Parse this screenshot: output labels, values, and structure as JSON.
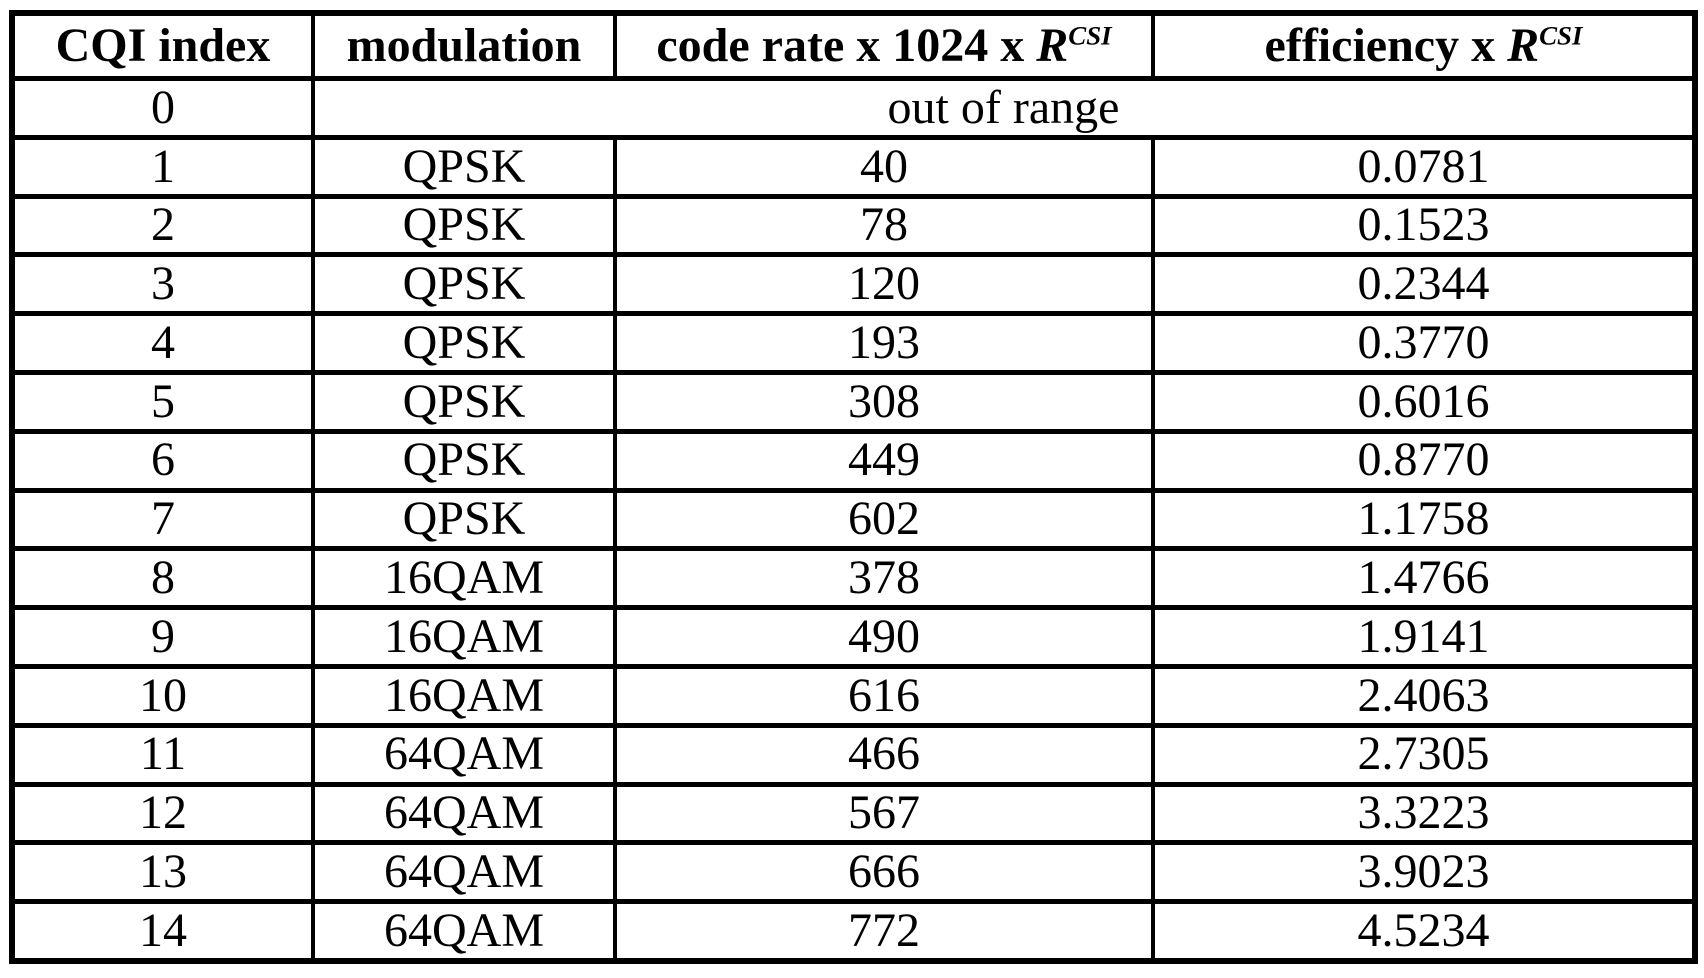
{
  "colors": {
    "background": "#ffffff",
    "border": "#000000",
    "text": "#000000"
  },
  "table": {
    "headers": {
      "cqi_index": "CQI index",
      "modulation": "modulation",
      "code_rate_prefix": "code rate x 1024 x ",
      "efficiency_prefix": "efficiency x ",
      "r_symbol": "R",
      "r_superscript": "CSI"
    },
    "out_of_range": {
      "index": "0",
      "label": "out of range"
    },
    "rows": [
      {
        "cqi": "1",
        "modulation": "QPSK",
        "code_rate": "40",
        "efficiency": "0.0781"
      },
      {
        "cqi": "2",
        "modulation": "QPSK",
        "code_rate": "78",
        "efficiency": "0.1523"
      },
      {
        "cqi": "3",
        "modulation": "QPSK",
        "code_rate": "120",
        "efficiency": "0.2344"
      },
      {
        "cqi": "4",
        "modulation": "QPSK",
        "code_rate": "193",
        "efficiency": "0.3770"
      },
      {
        "cqi": "5",
        "modulation": "QPSK",
        "code_rate": "308",
        "efficiency": "0.6016"
      },
      {
        "cqi": "6",
        "modulation": "QPSK",
        "code_rate": "449",
        "efficiency": "0.8770"
      },
      {
        "cqi": "7",
        "modulation": "QPSK",
        "code_rate": "602",
        "efficiency": "1.1758"
      },
      {
        "cqi": "8",
        "modulation": "16QAM",
        "code_rate": "378",
        "efficiency": "1.4766"
      },
      {
        "cqi": "9",
        "modulation": "16QAM",
        "code_rate": "490",
        "efficiency": "1.9141"
      },
      {
        "cqi": "10",
        "modulation": "16QAM",
        "code_rate": "616",
        "efficiency": "2.4063"
      },
      {
        "cqi": "11",
        "modulation": "64QAM",
        "code_rate": "466",
        "efficiency": "2.7305"
      },
      {
        "cqi": "12",
        "modulation": "64QAM",
        "code_rate": "567",
        "efficiency": "3.3223"
      },
      {
        "cqi": "13",
        "modulation": "64QAM",
        "code_rate": "666",
        "efficiency": "3.9023"
      },
      {
        "cqi": "14",
        "modulation": "64QAM",
        "code_rate": "772",
        "efficiency": "4.5234"
      }
    ]
  }
}
